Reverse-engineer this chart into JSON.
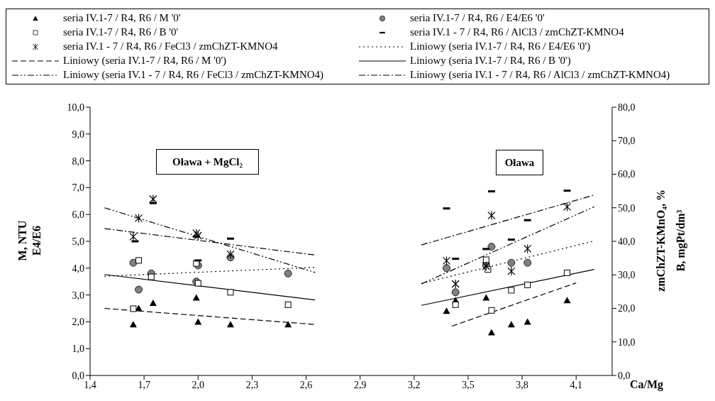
{
  "chart_data": {
    "type": "scatter",
    "xlabel": "Ca/Mg",
    "ylabel": "M, NTU\nE4/E6",
    "y2label": "zmChZT-KMnO₄, %\nB, mgPt/dm³",
    "annotations": [
      "Oława + MgCl₂",
      "Oława"
    ],
    "xlim": [
      1.4,
      4.3
    ],
    "xticks": [
      {
        "value": 1.4,
        "label": "1,4"
      },
      {
        "value": 1.7,
        "label": "1,7"
      },
      {
        "value": 2.0,
        "label": "2,0"
      },
      {
        "value": 2.3,
        "label": "2,3"
      },
      {
        "value": 2.6,
        "label": "2,6"
      },
      {
        "value": 2.9,
        "label": "2,9"
      },
      {
        "value": 3.2,
        "label": "3,2"
      },
      {
        "value": 3.5,
        "label": "3,5"
      },
      {
        "value": 3.8,
        "label": "3,8"
      },
      {
        "value": 4.1,
        "label": "4,1"
      }
    ],
    "ylim": [
      0,
      10
    ],
    "yticks": [
      {
        "value": 0,
        "label": "0,0"
      },
      {
        "value": 1,
        "label": "1,0"
      },
      {
        "value": 2,
        "label": "2,0"
      },
      {
        "value": 3,
        "label": "3,0"
      },
      {
        "value": 4,
        "label": "4,0"
      },
      {
        "value": 5,
        "label": "5,0"
      },
      {
        "value": 6,
        "label": "6,0"
      },
      {
        "value": 7,
        "label": "7,0"
      },
      {
        "value": 8,
        "label": "8,0"
      },
      {
        "value": 9,
        "label": "9,0"
      },
      {
        "value": 10,
        "label": "10,0"
      }
    ],
    "y2lim": [
      0,
      80
    ],
    "y2ticks": [
      {
        "value": 0,
        "label": "0,0"
      },
      {
        "value": 10,
        "label": "10,0"
      },
      {
        "value": 20,
        "label": "20,0"
      },
      {
        "value": 30,
        "label": "30,0"
      },
      {
        "value": 40,
        "label": "40,0"
      },
      {
        "value": 50,
        "label": "50,0"
      },
      {
        "value": 60,
        "label": "60,0"
      },
      {
        "value": 70,
        "label": "70,0"
      },
      {
        "value": 80,
        "label": "80,0"
      }
    ],
    "legend": "top",
    "series": [
      {
        "name": "seria IV.1-7 / R4, R6 / M '0'",
        "marker": "triangle",
        "color": "#000000",
        "x": [
          1.64,
          1.67,
          1.75,
          1.99,
          2.0,
          2.18,
          2.5,
          3.38,
          3.43,
          3.6,
          3.63,
          3.74,
          3.83,
          4.05
        ],
        "values": [
          1.9,
          2.5,
          2.7,
          2.9,
          2.0,
          1.9,
          1.9,
          2.4,
          2.8,
          2.9,
          1.6,
          1.9,
          2.0,
          2.8
        ]
      },
      {
        "name": "seria IV.1-7 / R4, R6 / E4/E6 '0'",
        "marker": "circle",
        "color": "#808080",
        "x": [
          1.64,
          1.67,
          1.74,
          1.99,
          2.0,
          2.18,
          2.5,
          3.38,
          3.43,
          3.6,
          3.63,
          3.74,
          3.83
        ],
        "values": [
          4.2,
          3.2,
          3.8,
          3.5,
          4.1,
          4.4,
          3.8,
          4.0,
          3.1,
          4.1,
          4.8,
          4.2,
          4.2
        ]
      },
      {
        "name": "seria IV.1-7 / R4, R6 / B '0'",
        "marker": "square",
        "color": "#ffffff",
        "axis": "y2",
        "x": [
          1.64,
          1.67,
          1.74,
          1.99,
          2.0,
          2.18,
          2.5,
          3.43,
          3.6,
          3.61,
          3.63,
          3.74,
          3.83,
          4.05
        ],
        "values": [
          19.9,
          34.3,
          29.4,
          33.4,
          27.5,
          24.8,
          21.1,
          21.1,
          34.5,
          31.6,
          19.4,
          25.4,
          27.0,
          30.6
        ]
      },
      {
        "name": "seria IV.1 - 7 / R4, R6 / AlCl3 / zmChZT-KMNO4",
        "color": "#000000",
        "axis": "y2",
        "x": [
          1.65,
          1.75,
          1.99,
          2.0,
          2.18,
          3.38,
          3.43,
          3.6,
          3.63,
          3.74,
          3.83,
          4.05
        ],
        "values": [
          40.0,
          51.4,
          41.4,
          34.3,
          40.8,
          49.8,
          34.8,
          37.7,
          54.9,
          40.5,
          46.3,
          55.1
        ]
      },
      {
        "name": "seria IV.1 - 7 / R4, R6 / FeCl3 / zmChZT-KMNO4",
        "marker": "cross",
        "color": "#000000",
        "axis": "y2",
        "x": [
          1.64,
          1.67,
          1.75,
          1.99,
          2.0,
          2.18,
          3.38,
          3.43,
          3.6,
          3.63,
          3.74,
          3.83,
          4.05
        ],
        "values": [
          41.4,
          46.9,
          52.6,
          42.4,
          41.7,
          36.1,
          34.2,
          27.3,
          32.6,
          47.7,
          31.1,
          37.8,
          50.3
        ]
      },
      {
        "name": "Liniowy (seria IV.1-7 / R4, R6 / E4/E6 '0')",
        "type": "line",
        "line_style": "dotted",
        "color": "#000000",
        "x": [
          1.48,
          2.65,
          2.9,
          3.24,
          4.2
        ],
        "values": [
          3.7,
          4.03,
          null,
          3.43,
          5.01
        ]
      },
      {
        "name": "Liniowy (seria IV.1-7 / R4, R6 / M '0')",
        "type": "line",
        "line_style": "dashed",
        "color": "#000000",
        "x": [
          1.48,
          2.65,
          2.9,
          3.41,
          4.1
        ],
        "values": [
          2.5,
          1.9,
          null,
          1.84,
          3.45
        ]
      },
      {
        "name": "Liniowy (seria IV.1-7 / R4, R6 / B '0')",
        "type": "line",
        "line_style": "solid",
        "color": "#000000",
        "axis": "y2",
        "x": [
          1.48,
          2.65,
          2.9,
          3.24,
          4.2
        ],
        "values": [
          30.1,
          22.5,
          null,
          20.9,
          31.6
        ]
      },
      {
        "name": "Liniowy (seria IV.1 - 7 / R4, R6 / FeCl3 / zmChZT-KMNO4)",
        "type": "line",
        "line_style": "dashdotdot",
        "color": "#000000",
        "axis": "y2",
        "x": [
          1.48,
          2.65,
          2.9,
          3.24,
          4.2
        ],
        "values": [
          50.0,
          30.7,
          null,
          27.3,
          50.3
        ]
      },
      {
        "name": "Liniowy (seria IV.1 - 7 / R4, R6 / AlCl3 / zmChZT-KMNO4)",
        "type": "line",
        "line_style": "dashdot",
        "color": "#000000",
        "axis": "y2",
        "x": [
          1.48,
          2.65,
          2.9,
          3.24,
          4.2
        ],
        "values": [
          43.8,
          35.9,
          null,
          38.9,
          53.8
        ]
      }
    ]
  }
}
